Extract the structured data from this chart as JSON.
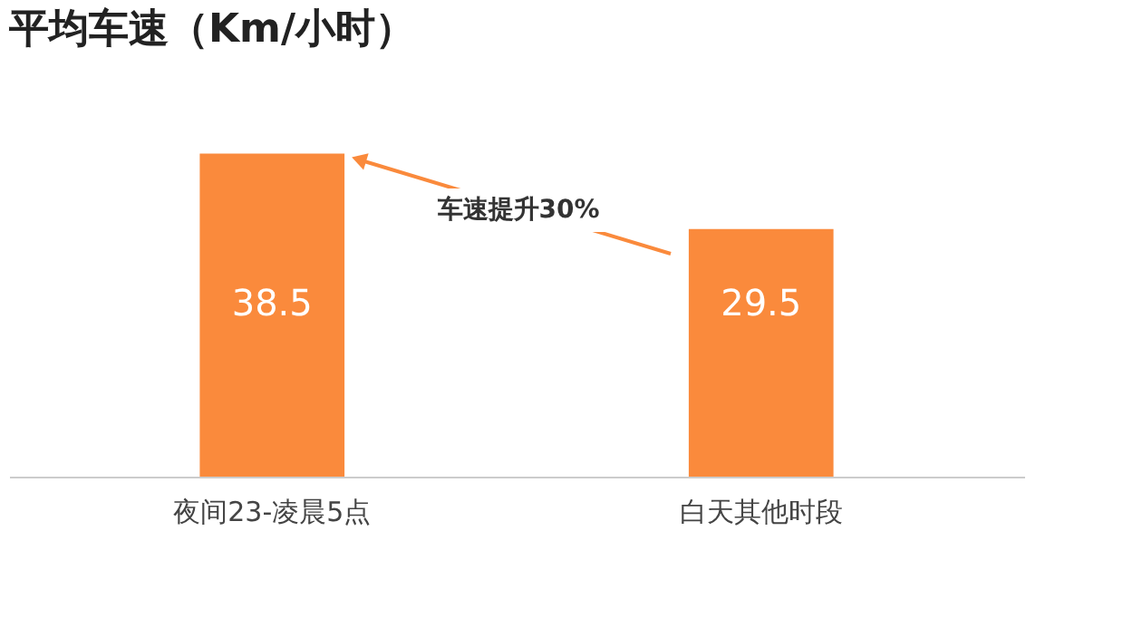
{
  "chart_data": {
    "type": "bar",
    "title": "平均车速（Km/小时）",
    "categories": [
      "夜间23-凌晨5点",
      "白天其他时段"
    ],
    "values": [
      38.5,
      29.5
    ],
    "color": "#fa8a3c",
    "data_labels": true,
    "grid": false,
    "annotations": [
      "车速提升30%"
    ]
  }
}
